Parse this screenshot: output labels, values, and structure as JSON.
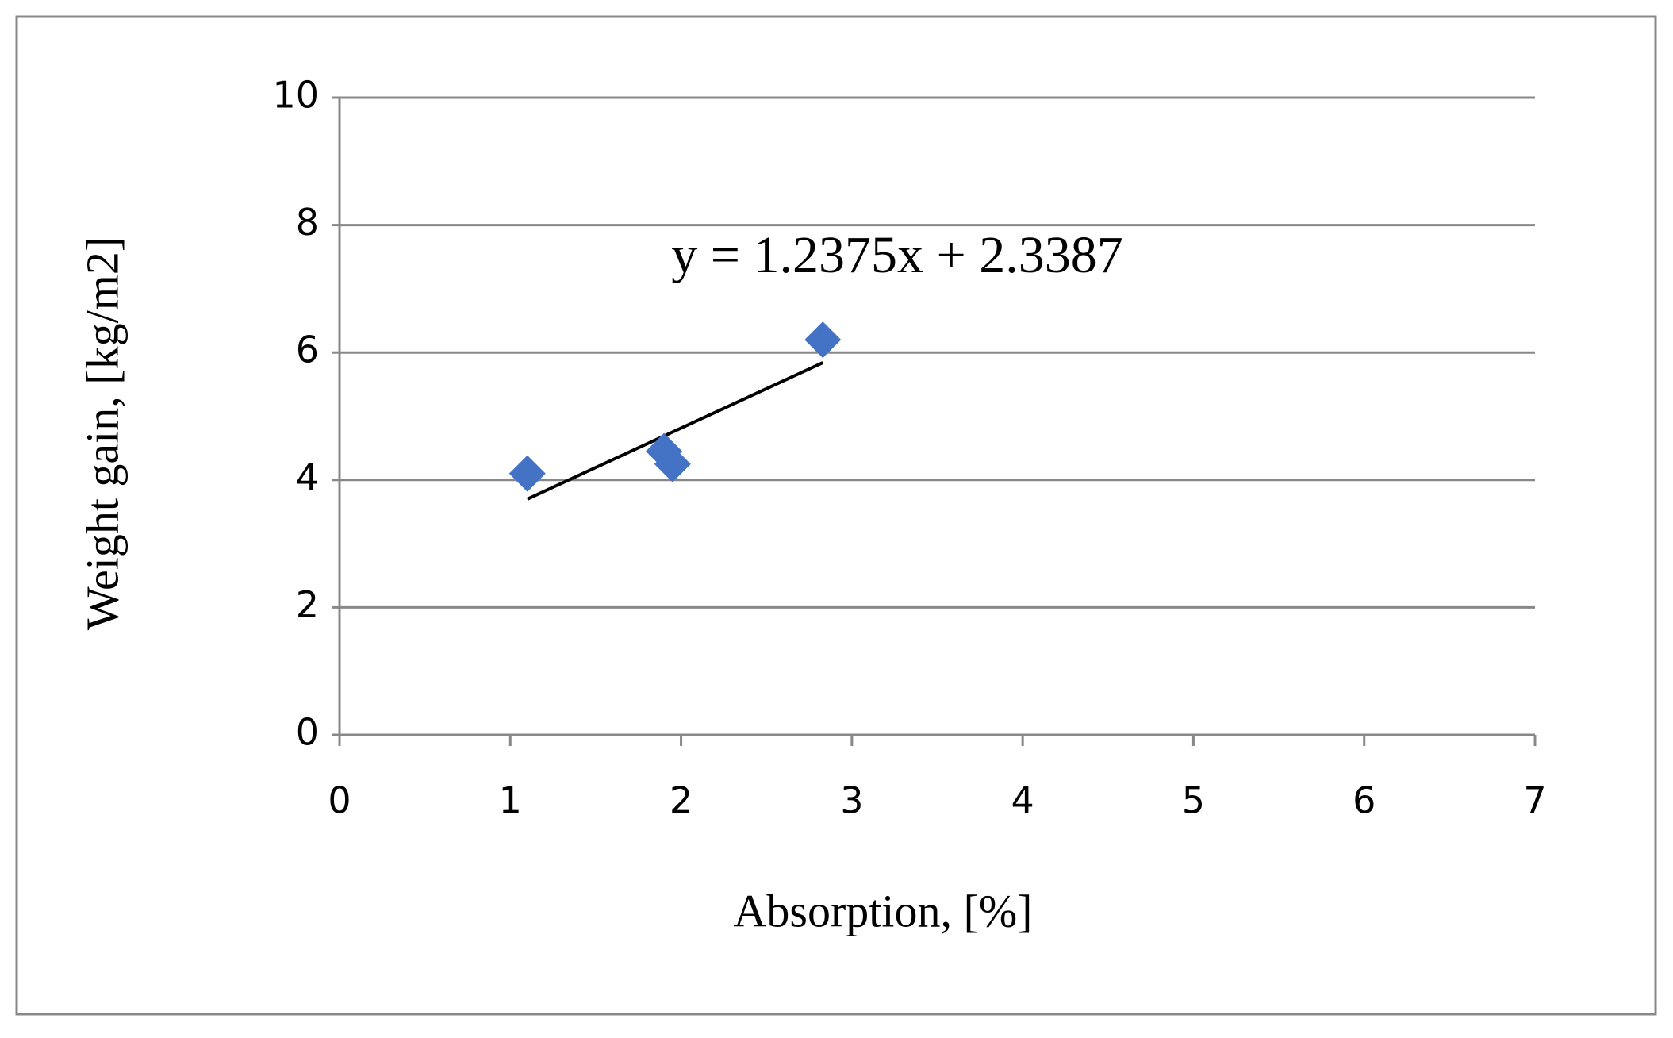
{
  "chart_data": {
    "type": "scatter",
    "x_label": "Absorption, [%]",
    "y_label": "Weight gain, [kg/m2]",
    "series": [
      {
        "color": "#4472c4",
        "x": [
          1.1,
          1.9,
          1.95,
          2.83
        ],
        "values": [
          4.1,
          4.45,
          4.25,
          6.2
        ]
      }
    ],
    "trendline": {
      "slope": 1.2375,
      "intercept": 2.3387,
      "color": "#000000",
      "label": "y = 1.2375x + 2.3387"
    },
    "xlim": [
      0,
      7
    ],
    "xticks": [
      0,
      1,
      2,
      3,
      4,
      5,
      6,
      7
    ],
    "ylim": [
      0,
      10
    ],
    "yticks": [
      0,
      2,
      4,
      6,
      8,
      10
    ],
    "grid": true
  }
}
